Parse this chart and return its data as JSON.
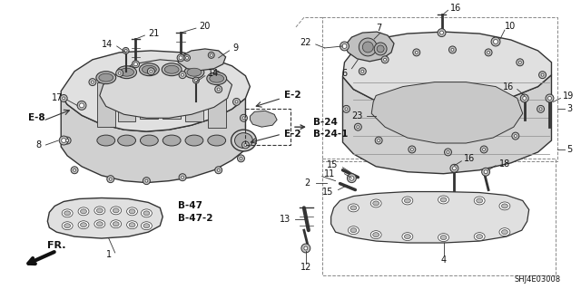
{
  "bg_color": "#ffffff",
  "fig_width": 6.4,
  "fig_height": 3.19,
  "part_code": "SHJ4E03008",
  "manifold_fill": "#e8e8e8",
  "manifold_edge": "#333333",
  "line_color": "#333333",
  "bold_labels": [
    "E-8",
    "E-2",
    "B-24",
    "B-24-1",
    "B-47",
    "B-47-2"
  ],
  "number_labels": [
    "1",
    "2",
    "3",
    "4",
    "5",
    "6",
    "7",
    "8",
    "9",
    "10",
    "11",
    "12",
    "13",
    "14",
    "15",
    "16",
    "17",
    "18",
    "19",
    "20",
    "21",
    "22",
    "23"
  ]
}
